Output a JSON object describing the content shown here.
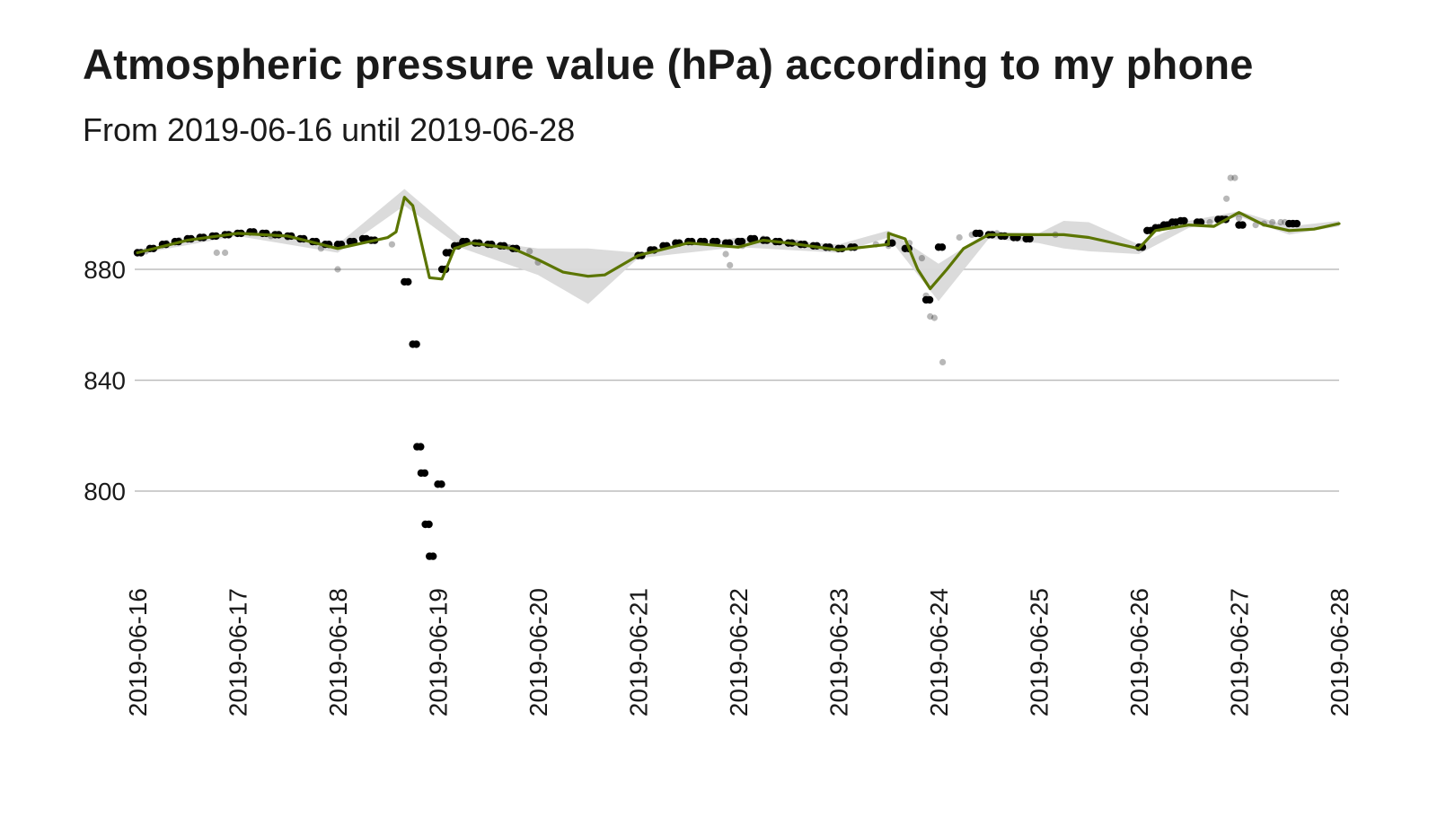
{
  "chart_data": {
    "type": "scatter",
    "title": "Atmospheric pressure value (hPa) according to my phone",
    "subtitle": "From 2019-06-16 until 2019-06-28",
    "xlabel": "",
    "ylabel": "",
    "x_ticks": [
      "2019-06-16",
      "2019-06-17",
      "2019-06-18",
      "2019-06-19",
      "2019-06-20",
      "2019-06-21",
      "2019-06-22",
      "2019-06-23",
      "2019-06-24",
      "2019-06-25",
      "2019-06-26",
      "2019-06-27",
      "2019-06-28"
    ],
    "y_ticks": [
      800,
      840,
      880
    ],
    "xlim": [
      "2019-06-16",
      "2019-06-28"
    ],
    "ylim": [
      772,
      915
    ],
    "grid": "horizontal",
    "legend": "none",
    "colors": {
      "trend": "#5b7500",
      "band": "#d9d9d9",
      "point": "#000000",
      "grid": "#bdbdbd"
    },
    "series": [
      {
        "kind": "points",
        "points": [
          [
            "2019-06-16 00:00",
            886.0
          ],
          [
            "2019-06-16 03:00",
            887.5
          ],
          [
            "2019-06-16 06:00",
            889.0
          ],
          [
            "2019-06-16 09:00",
            890.0
          ],
          [
            "2019-06-16 12:00",
            891.0
          ],
          [
            "2019-06-16 15:00",
            891.5
          ],
          [
            "2019-06-16 18:00",
            892.0
          ],
          [
            "2019-06-16 21:00",
            892.5
          ],
          [
            "2019-06-17 00:00",
            893.0
          ],
          [
            "2019-06-17 03:00",
            893.5
          ],
          [
            "2019-06-17 06:00",
            893.0
          ],
          [
            "2019-06-17 09:00",
            892.5
          ],
          [
            "2019-06-17 12:00",
            892.0
          ],
          [
            "2019-06-17 15:00",
            891.0
          ],
          [
            "2019-06-17 18:00",
            890.0
          ],
          [
            "2019-06-17 21:00",
            889.0
          ],
          [
            "2019-06-18 00:00",
            889.0
          ],
          [
            "2019-06-18 03:00",
            890.0
          ],
          [
            "2019-06-18 06:00",
            891.0
          ],
          [
            "2019-06-18 08:00",
            890.5
          ],
          [
            "2019-06-18 16:00",
            875.5
          ],
          [
            "2019-06-18 18:00",
            853.0
          ],
          [
            "2019-06-18 19:00",
            816.0
          ],
          [
            "2019-06-18 20:00",
            806.5
          ],
          [
            "2019-06-18 21:00",
            788.0
          ],
          [
            "2019-06-18 22:00",
            776.5
          ],
          [
            "2019-06-19 00:00",
            802.5
          ],
          [
            "2019-06-19 01:00",
            880.0
          ],
          [
            "2019-06-19 02:00",
            886.0
          ],
          [
            "2019-06-19 04:00",
            888.5
          ],
          [
            "2019-06-19 06:00",
            890.0
          ],
          [
            "2019-06-19 09:00",
            889.5
          ],
          [
            "2019-06-19 12:00",
            889.0
          ],
          [
            "2019-06-19 15:00",
            888.5
          ],
          [
            "2019-06-19 18:00",
            887.5
          ],
          [
            "2019-06-21 00:00",
            885.0
          ],
          [
            "2019-06-21 03:00",
            887.0
          ],
          [
            "2019-06-21 06:00",
            888.5
          ],
          [
            "2019-06-21 09:00",
            889.5
          ],
          [
            "2019-06-21 12:00",
            890.0
          ],
          [
            "2019-06-21 15:00",
            890.0
          ],
          [
            "2019-06-21 18:00",
            890.0
          ],
          [
            "2019-06-21 21:00",
            889.5
          ],
          [
            "2019-06-22 00:00",
            890.0
          ],
          [
            "2019-06-22 03:00",
            891.0
          ],
          [
            "2019-06-22 06:00",
            890.5
          ],
          [
            "2019-06-22 09:00",
            890.0
          ],
          [
            "2019-06-22 12:00",
            889.5
          ],
          [
            "2019-06-22 15:00",
            889.0
          ],
          [
            "2019-06-22 18:00",
            888.5
          ],
          [
            "2019-06-22 21:00",
            888.0
          ],
          [
            "2019-06-23 00:00",
            887.5
          ],
          [
            "2019-06-23 03:00",
            888.0
          ],
          [
            "2019-06-23 12:00",
            889.5
          ],
          [
            "2019-06-23 16:00",
            887.5
          ],
          [
            "2019-06-23 21:00",
            869.0
          ],
          [
            "2019-06-24 00:00",
            888.0
          ],
          [
            "2019-06-24 09:00",
            893.0
          ],
          [
            "2019-06-24 12:00",
            892.5
          ],
          [
            "2019-06-24 15:00",
            892.0
          ],
          [
            "2019-06-24 18:00",
            891.5
          ],
          [
            "2019-06-24 21:00",
            891.0
          ],
          [
            "2019-06-26 00:00",
            888.0
          ],
          [
            "2019-06-26 02:00",
            894.0
          ],
          [
            "2019-06-26 04:00",
            895.0
          ],
          [
            "2019-06-26 06:00",
            896.0
          ],
          [
            "2019-06-26 08:00",
            897.0
          ],
          [
            "2019-06-26 10:00",
            897.5
          ],
          [
            "2019-06-26 14:00",
            897.0
          ],
          [
            "2019-06-26 19:00",
            898.0
          ],
          [
            "2019-06-26 20:00",
            898.0
          ],
          [
            "2019-06-27 00:00",
            896.0
          ],
          [
            "2019-06-27 12:00",
            896.5
          ],
          [
            "2019-06-27 13:00",
            896.5
          ]
        ]
      },
      {
        "kind": "faint-points",
        "points": [
          [
            "2019-06-16 02:00",
            886.5
          ],
          [
            "2019-06-16 04:00",
            887.5
          ],
          [
            "2019-06-16 07:00",
            889.5
          ],
          [
            "2019-06-16 10:00",
            890.5
          ],
          [
            "2019-06-16 19:00",
            886.0
          ],
          [
            "2019-06-16 21:00",
            886.0
          ],
          [
            "2019-06-17 08:00",
            892.0
          ],
          [
            "2019-06-17 12:00",
            891.5
          ],
          [
            "2019-06-17 20:00",
            887.5
          ],
          [
            "2019-06-18 00:00",
            880.0
          ],
          [
            "2019-06-18 13:00",
            889.0
          ],
          [
            "2019-06-19 17:00",
            888.0
          ],
          [
            "2019-06-19 22:00",
            886.5
          ],
          [
            "2019-06-20 00:00",
            882.5
          ],
          [
            "2019-06-21 18:00",
            890.0
          ],
          [
            "2019-06-21 21:00",
            885.5
          ],
          [
            "2019-06-21 22:00",
            881.5
          ],
          [
            "2019-06-22 01:00",
            888.5
          ],
          [
            "2019-06-22 06:00",
            891.0
          ],
          [
            "2019-06-22 09:00",
            890.0
          ],
          [
            "2019-06-22 14:00",
            889.5
          ],
          [
            "2019-06-23 09:00",
            889.0
          ],
          [
            "2019-06-23 12:00",
            888.5
          ],
          [
            "2019-06-23 17:00",
            889.5
          ],
          [
            "2019-06-23 20:00",
            884.0
          ],
          [
            "2019-06-23 21:00",
            870.5
          ],
          [
            "2019-06-23 22:00",
            863.0
          ],
          [
            "2019-06-23 23:00",
            862.5
          ],
          [
            "2019-06-24 01:00",
            846.5
          ],
          [
            "2019-06-24 05:00",
            891.5
          ],
          [
            "2019-06-24 08:00",
            892.5
          ],
          [
            "2019-06-24 14:00",
            893.0
          ],
          [
            "2019-06-24 22:00",
            891.0
          ],
          [
            "2019-06-25 04:00",
            892.5
          ],
          [
            "2019-06-26 17:00",
            897.0
          ],
          [
            "2019-06-26 21:00",
            905.5
          ],
          [
            "2019-06-26 22:00",
            913.0
          ],
          [
            "2019-06-26 23:00",
            913.0
          ],
          [
            "2019-06-27 00:00",
            898.5
          ],
          [
            "2019-06-27 04:00",
            896.0
          ],
          [
            "2019-06-27 06:00",
            896.5
          ],
          [
            "2019-06-27 08:00",
            897.0
          ],
          [
            "2019-06-27 10:00",
            897.0
          ],
          [
            "2019-06-27 11:00",
            897.0
          ]
        ]
      },
      {
        "kind": "trend-line",
        "points": [
          [
            "2019-06-16 00:00",
            886.0
          ],
          [
            "2019-06-16 12:00",
            890.5
          ],
          [
            "2019-06-17 00:00",
            893.0
          ],
          [
            "2019-06-17 12:00",
            892.0
          ],
          [
            "2019-06-18 00:00",
            887.5
          ],
          [
            "2019-06-18 12:00",
            891.5
          ],
          [
            "2019-06-18 14:00",
            893.5
          ],
          [
            "2019-06-18 16:00",
            906.0
          ],
          [
            "2019-06-18 18:00",
            903.0
          ],
          [
            "2019-06-18 22:00",
            877.0
          ],
          [
            "2019-06-19 01:00",
            876.5
          ],
          [
            "2019-06-19 04:00",
            887.5
          ],
          [
            "2019-06-19 08:00",
            889.5
          ],
          [
            "2019-06-19 18:00",
            887.5
          ],
          [
            "2019-06-20 00:00",
            883.5
          ],
          [
            "2019-06-20 06:00",
            879.0
          ],
          [
            "2019-06-20 12:00",
            877.5
          ],
          [
            "2019-06-20 16:00",
            878.0
          ],
          [
            "2019-06-21 00:00",
            885.0
          ],
          [
            "2019-06-21 12:00",
            889.5
          ],
          [
            "2019-06-22 00:00",
            888.0
          ],
          [
            "2019-06-22 06:00",
            890.5
          ],
          [
            "2019-06-22 12:00",
            889.5
          ],
          [
            "2019-06-23 00:00",
            887.0
          ],
          [
            "2019-06-23 12:00",
            889.0
          ],
          [
            "2019-06-23 12:00",
            893.0
          ],
          [
            "2019-06-23 16:00",
            891.0
          ],
          [
            "2019-06-23 19:00",
            880.0
          ],
          [
            "2019-06-23 22:00",
            873.0
          ],
          [
            "2019-06-24 02:00",
            880.0
          ],
          [
            "2019-06-24 06:00",
            887.5
          ],
          [
            "2019-06-24 12:00",
            892.5
          ],
          [
            "2019-06-25 00:00",
            892.5
          ],
          [
            "2019-06-25 06:00",
            892.5
          ],
          [
            "2019-06-25 12:00",
            891.5
          ],
          [
            "2019-06-26 00:00",
            887.5
          ],
          [
            "2019-06-26 04:00",
            894.0
          ],
          [
            "2019-06-26 12:00",
            896.0
          ],
          [
            "2019-06-26 18:00",
            895.5
          ],
          [
            "2019-06-27 00:00",
            900.5
          ],
          [
            "2019-06-27 06:00",
            896.0
          ],
          [
            "2019-06-27 12:00",
            894.0
          ],
          [
            "2019-06-27 18:00",
            894.5
          ],
          [
            "2019-06-28 00:00",
            896.5
          ]
        ]
      },
      {
        "kind": "confidence-band",
        "upper": [
          [
            "2019-06-16 00:00",
            886.5
          ],
          [
            "2019-06-17 00:00",
            894.0
          ],
          [
            "2019-06-18 00:00",
            889.0
          ],
          [
            "2019-06-18 16:00",
            909.0
          ],
          [
            "2019-06-19 06:00",
            891.0
          ],
          [
            "2019-06-20 00:00",
            887.5
          ],
          [
            "2019-06-20 12:00",
            887.5
          ],
          [
            "2019-06-21 00:00",
            886.0
          ],
          [
            "2019-06-22 00:00",
            891.5
          ],
          [
            "2019-06-23 00:00",
            889.0
          ],
          [
            "2019-06-23 12:00",
            894.0
          ],
          [
            "2019-06-24 00:00",
            882.0
          ],
          [
            "2019-06-24 12:00",
            893.5
          ],
          [
            "2019-06-25 00:00",
            893.0
          ],
          [
            "2019-06-25 06:00",
            897.5
          ],
          [
            "2019-06-25 12:00",
            897.0
          ],
          [
            "2019-06-26 00:00",
            889.0
          ],
          [
            "2019-06-26 12:00",
            897.5
          ],
          [
            "2019-06-27 00:00",
            901.0
          ],
          [
            "2019-06-27 12:00",
            895.5
          ],
          [
            "2019-06-28 00:00",
            897.5
          ]
        ],
        "lower": [
          [
            "2019-06-16 00:00",
            885.5
          ],
          [
            "2019-06-17 00:00",
            892.0
          ],
          [
            "2019-06-18 00:00",
            886.0
          ],
          [
            "2019-06-18 16:00",
            903.0
          ],
          [
            "2019-06-19 06:00",
            887.5
          ],
          [
            "2019-06-20 00:00",
            878.0
          ],
          [
            "2019-06-20 12:00",
            867.5
          ],
          [
            "2019-06-21 00:00",
            884.0
          ],
          [
            "2019-06-22 00:00",
            888.0
          ],
          [
            "2019-06-23 00:00",
            886.0
          ],
          [
            "2019-06-23 12:00",
            891.5
          ],
          [
            "2019-06-24 00:00",
            868.5
          ],
          [
            "2019-06-24 12:00",
            891.0
          ],
          [
            "2019-06-25 00:00",
            889.5
          ],
          [
            "2019-06-25 06:00",
            887.5
          ],
          [
            "2019-06-25 12:00",
            886.5
          ],
          [
            "2019-06-26 00:00",
            885.5
          ],
          [
            "2019-06-26 12:00",
            895.0
          ],
          [
            "2019-06-27 00:00",
            899.0
          ],
          [
            "2019-06-27 12:00",
            892.5
          ],
          [
            "2019-06-28 00:00",
            895.5
          ]
        ]
      }
    ]
  }
}
